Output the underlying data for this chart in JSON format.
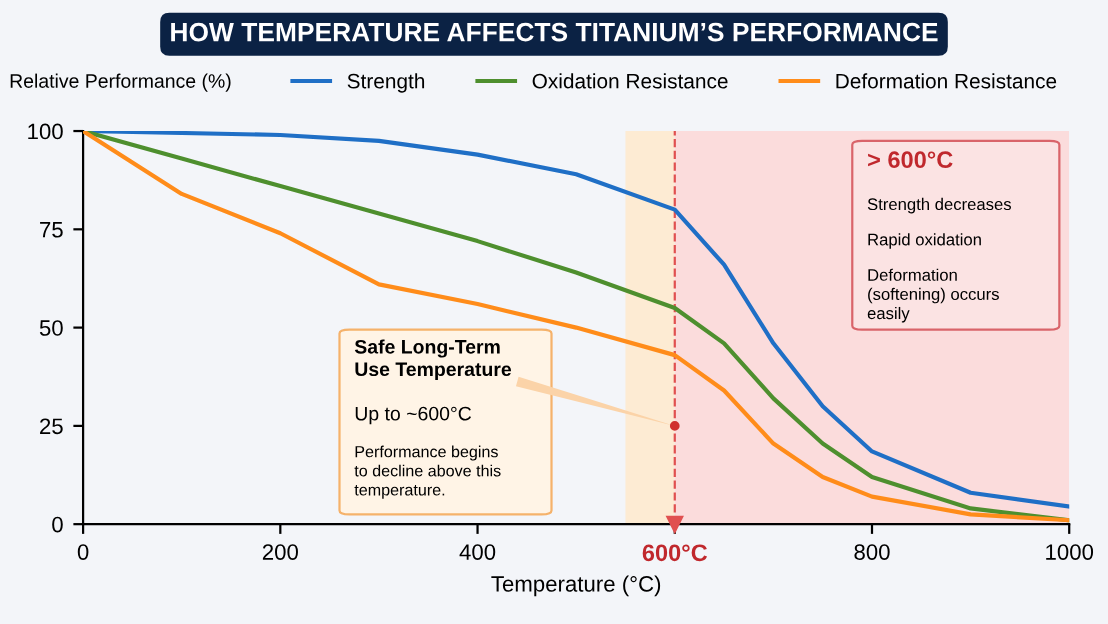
{
  "chart_data": {
    "type": "line",
    "title": "HOW TEMPERATURE AFFECTS TITANIUM’S PERFORMANCE",
    "xlabel": "Temperature (°C)",
    "ylabel": "Relative Performance (%)",
    "x": [
      0,
      100,
      200,
      300,
      400,
      500,
      600,
      650,
      700,
      750,
      800,
      900,
      1000
    ],
    "series": [
      {
        "name": "Strength",
        "color": "#1f6fc6",
        "values": [
          100,
          99.5,
          99,
          97.5,
          94,
          89,
          80,
          66,
          46,
          30,
          18.5,
          8,
          4.5
        ]
      },
      {
        "name": "Oxidation Resistance",
        "color": "#4e8f2e",
        "values": [
          100,
          93,
          86,
          79,
          72,
          64,
          55,
          46,
          32,
          20.5,
          12,
          4,
          1
        ]
      },
      {
        "name": "Deformation Resistance",
        "color": "#ff8c1a",
        "values": [
          100,
          84,
          74,
          61,
          56,
          50,
          43,
          34,
          20.5,
          12,
          7,
          2.5,
          1
        ]
      }
    ],
    "xlim": [
      0,
      1000
    ],
    "ylim": [
      0,
      100
    ],
    "xticks": [
      0,
      200,
      400,
      {
        "value": 600,
        "label": null
      },
      800,
      1000
    ],
    "yticks": [
      0,
      25,
      50,
      75,
      100
    ],
    "ref_lines": [
      {
        "axis": "x",
        "value": 600,
        "label": "600°C",
        "color": "#e05050",
        "line_style": "dashed"
      }
    ],
    "bands": [
      {
        "axis": "x",
        "from": 550,
        "to": 600,
        "color": "#fdebd3"
      },
      {
        "axis": "x",
        "from": 600,
        "to": 1000,
        "color": "#fbdcdc"
      }
    ],
    "annotations": [
      {
        "text": "Safe Long-Term\nUse Temperature",
        "x": 600,
        "y": 25
      },
      "Up to ~600°C",
      "Performance begins\nto decline above this\ntemperature.",
      "> 600°C",
      "Strength decreases",
      "Rapid oxidation",
      "Deformation\n(softening) occurs\neasily"
    ],
    "grid": false,
    "legend": "top",
    "marker": "none",
    "line_style": "solid"
  }
}
